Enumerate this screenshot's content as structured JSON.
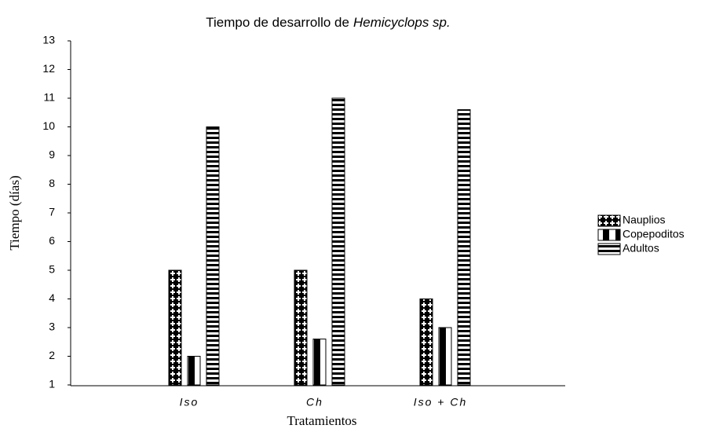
{
  "chart_data": {
    "type": "bar",
    "title": [
      "Tiempo de desarrollo de",
      "Hemicyclops sp."
    ],
    "xlabel": "Tratamientos",
    "ylabel": "Tiempo (días)",
    "categories": [
      "Iso",
      "Ch",
      "Iso + Ch"
    ],
    "series": [
      {
        "name": "Nauplios",
        "color": "#000000",
        "pattern": "cross",
        "values": [
          5,
          5,
          4
        ]
      },
      {
        "name": "Copepoditos",
        "color": "#000000",
        "pattern": "vertical",
        "values": [
          2,
          2.6,
          3
        ]
      },
      {
        "name": "Adultos",
        "color": "#000000",
        "pattern": "horizontal",
        "values": [
          10,
          11,
          10.6
        ]
      }
    ],
    "ylim": [
      1,
      13
    ],
    "yticks": [
      1,
      2,
      3,
      4,
      5,
      6,
      7,
      8,
      9,
      10,
      11,
      12,
      13
    ],
    "grid": false,
    "legend": "right"
  }
}
